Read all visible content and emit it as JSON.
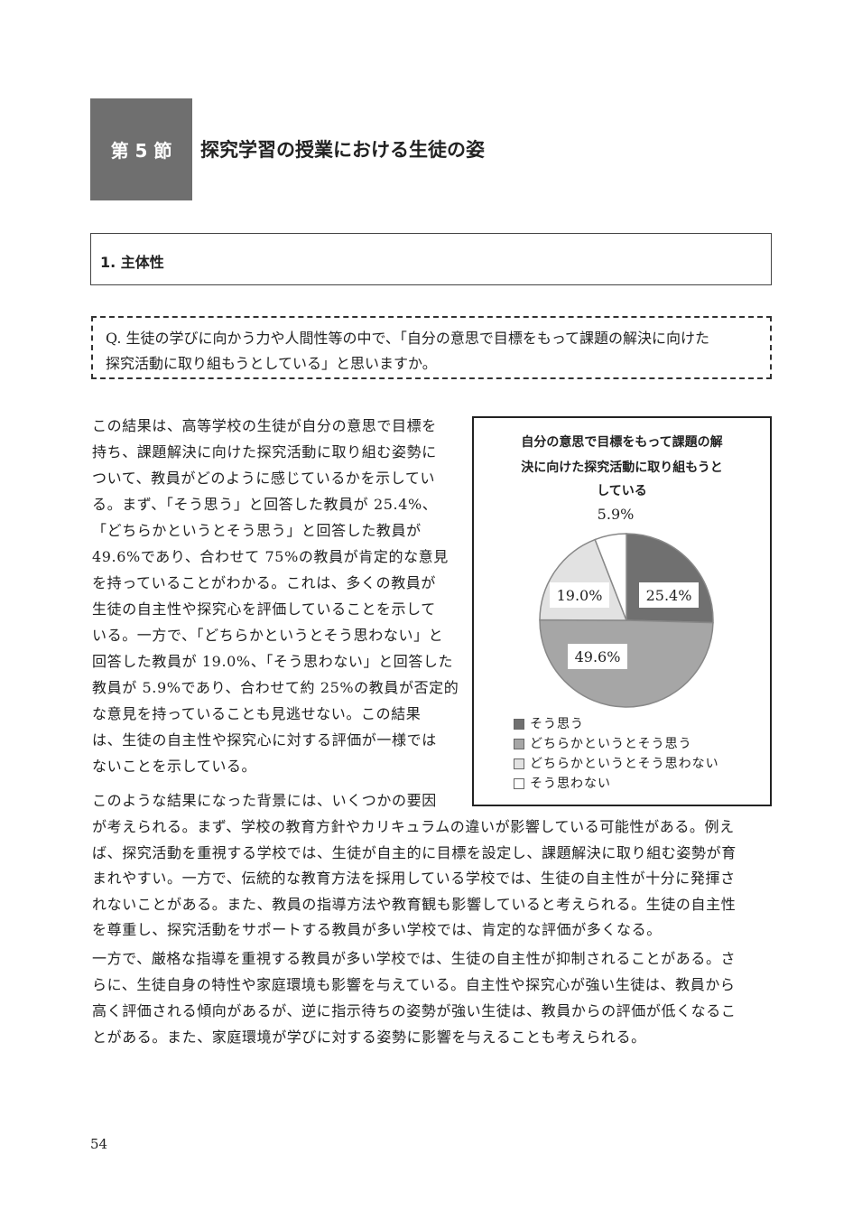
{
  "header": {
    "section_label": "第 5 節",
    "section_title": "探究学習の授業における生徒の姿"
  },
  "subsection": {
    "title": "1. 主体性"
  },
  "question": {
    "lines": [
      "Q. 生徒の学びに向かう力や人間性等の中で、「自分の意思で目標をもって課題の解決に向けた",
      "探究活動に取り組もうとしている」と思いますか。"
    ]
  },
  "body": {
    "column_lines": [
      "この結果は、高等学校の生徒が自分の意思で目標を",
      "持ち、課題解決に向けた探究活動に取り組む姿勢に",
      "ついて、教員がどのように感じているかを示してい",
      "る。まず、「そう思う」と回答した教員が 25.4%、",
      "「どちらかというとそう思う」と回答した教員が",
      "49.6%であり、合わせて 75%の教員が肯定的な意見",
      "を持っていることがわかる。これは、多くの教員が",
      "生徒の自主性や探究心を評価していることを示して",
      "いる。一方で、「どちらかというとそう思わない」と",
      "回答した教員が 19.0%、「そう思わない」と回答した",
      "教員が 5.9%であり、合わせて約 25%の教員が否定的",
      "な意見を持っていることも見逃せない。この結果",
      "は、生徒の自主性や探究心に対する評価が一様では",
      "ないことを示している。",
      "このような結果になった背景には、いくつかの要因"
    ],
    "full_lines": [
      "が考えられる。まず、学校の教育方針やカリキュラムの違いが影響している可能性がある。例え",
      "ば、探究活動を重視する学校では、生徒が自主的に目標を設定し、課題解決に取り組む姿勢が育",
      "まれやすい。一方で、伝統的な教育方法を採用している学校では、生徒の自主性が十分に発揮さ",
      "れないことがある。また、教員の指導方法や教育観も影響していると考えられる。生徒の自主性",
      "を尊重し、探究活動をサポートする教員が多い学校では、肯定的な評価が多くなる。"
    ],
    "para2_lines": [
      "一方で、厳格な指導を重視する教員が多い学校では、生徒の自主性が抑制されることがある。さ",
      "らに、生徒自身の特性や家庭環境も影響を与えている。自主性や探究心が強い生徒は、教員から",
      "高く評価される傾向があるが、逆に指示待ちの姿勢が強い生徒は、教員からの評価が低くなるこ",
      "とがある。また、家庭環境が学びに対する姿勢に影響を与えることも考えられる。"
    ]
  },
  "chart_data": {
    "type": "pie",
    "title_lines": [
      "自分の意思で目標をもって課題の解",
      "決に向けた探究活動に取り組もうと",
      "している"
    ],
    "categories": [
      "そう思う",
      "どちらかというとそう思う",
      "どちらかというとそう思わない",
      "そう思わない"
    ],
    "values": [
      25.4,
      49.6,
      19.0,
      5.9
    ],
    "labels": [
      "25.4%",
      "49.6%",
      "19.0%",
      "5.9%"
    ],
    "colors": [
      "#707070",
      "#a6a6a6",
      "#e2e2e2",
      "#ffffff"
    ],
    "start": "top",
    "direction": "clockwise",
    "legend": "bottom-left"
  },
  "footer": {
    "page_number": "54"
  }
}
